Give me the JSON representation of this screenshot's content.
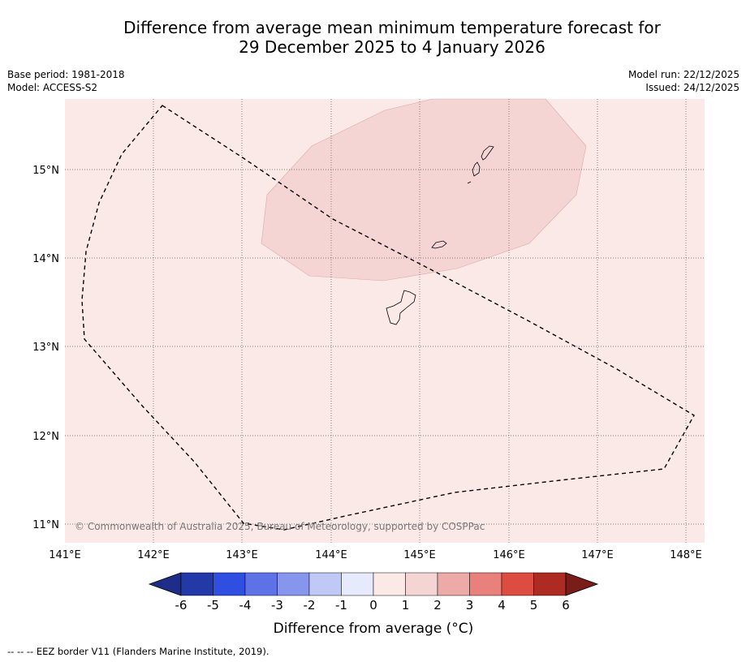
{
  "title": {
    "line1": "Difference from average mean minimum temperature forecast for",
    "line2": "29 December 2025 to 4 January 2026"
  },
  "meta": {
    "base_period": "Base period: 1981-2018",
    "model": "Model: ACCESS-S2",
    "model_run": "Model run: 22/12/2025",
    "issued": "Issued: 24/12/2025"
  },
  "map": {
    "lat_labels": [
      "15°N",
      "14°N",
      "13°N",
      "12°N",
      "11°N"
    ],
    "lon_labels": [
      "141°E",
      "142°E",
      "143°E",
      "144°E",
      "145°E",
      "146°E",
      "147°E",
      "148°E"
    ],
    "copyright": "© Commonwealth of Australia 2025, Bureau of Meteorology, supported by COSPPac",
    "background_class_color": "#fbe9e8",
    "anomaly_region_color": "#f5d5d4"
  },
  "colorbar": {
    "labels": [
      "-6",
      "-5",
      "-4",
      "-3",
      "-2",
      "-1",
      "0",
      "1",
      "2",
      "3",
      "4",
      "5",
      "6"
    ],
    "colors": [
      "#2439a8",
      "#2f4fe0",
      "#5c72e6",
      "#8596ec",
      "#c0c8f5",
      "#e6eafc",
      "#fbe9e8",
      "#f5d5d4",
      "#eeaaa6",
      "#e8817c",
      "#dc4c40",
      "#ad2b22"
    ],
    "low_extend_color": "#1f2d8a",
    "high_extend_color": "#7a1c18",
    "label": "Difference from average (°C)"
  },
  "footnote": "--  --  -- EEZ border V11 (Flanders Marine Institute, 2019)."
}
